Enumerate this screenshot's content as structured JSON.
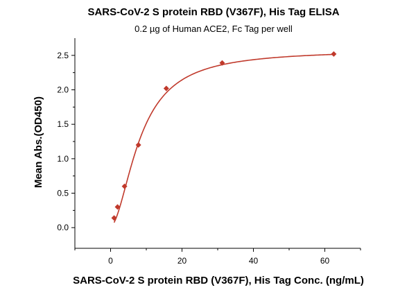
{
  "chart_data": {
    "type": "scatter",
    "title": "SARS-CoV-2 S protein RBD (V367F), His Tag ELISA",
    "subtitle": "0.2 µg of Human ACE2, Fc Tag per well",
    "xlabel": "SARS-CoV-2 S protein RBD (V367F), His Tag Conc. (ng/mL)",
    "ylabel": "Mean Abs.(OD450)",
    "xlim": [
      -10,
      70
    ],
    "ylim": [
      -0.3,
      2.75
    ],
    "x_ticks": [
      0,
      20,
      40,
      60
    ],
    "y_ticks": [
      0.0,
      0.5,
      1.0,
      1.5,
      2.0,
      2.5
    ],
    "x_tick_labels": [
      "0",
      "20",
      "40",
      "60"
    ],
    "y_tick_labels": [
      "0.0",
      "0.5",
      "1.0",
      "1.5",
      "2.0",
      "2.5"
    ],
    "grid": false,
    "marker": "diamond",
    "color": "#c0392b",
    "points": [
      {
        "x": 0.98,
        "y": 0.14
      },
      {
        "x": 1.95,
        "y": 0.3
      },
      {
        "x": 3.9,
        "y": 0.6
      },
      {
        "x": 7.8,
        "y": 1.2
      },
      {
        "x": 15.6,
        "y": 2.02
      },
      {
        "x": 31.25,
        "y": 2.39
      },
      {
        "x": 62.5,
        "y": 2.52
      }
    ],
    "fit_curve": {
      "model": "4PL",
      "bottom": 0.02,
      "top": 2.58,
      "ec50": 8.3,
      "hill": 1.8
    }
  }
}
